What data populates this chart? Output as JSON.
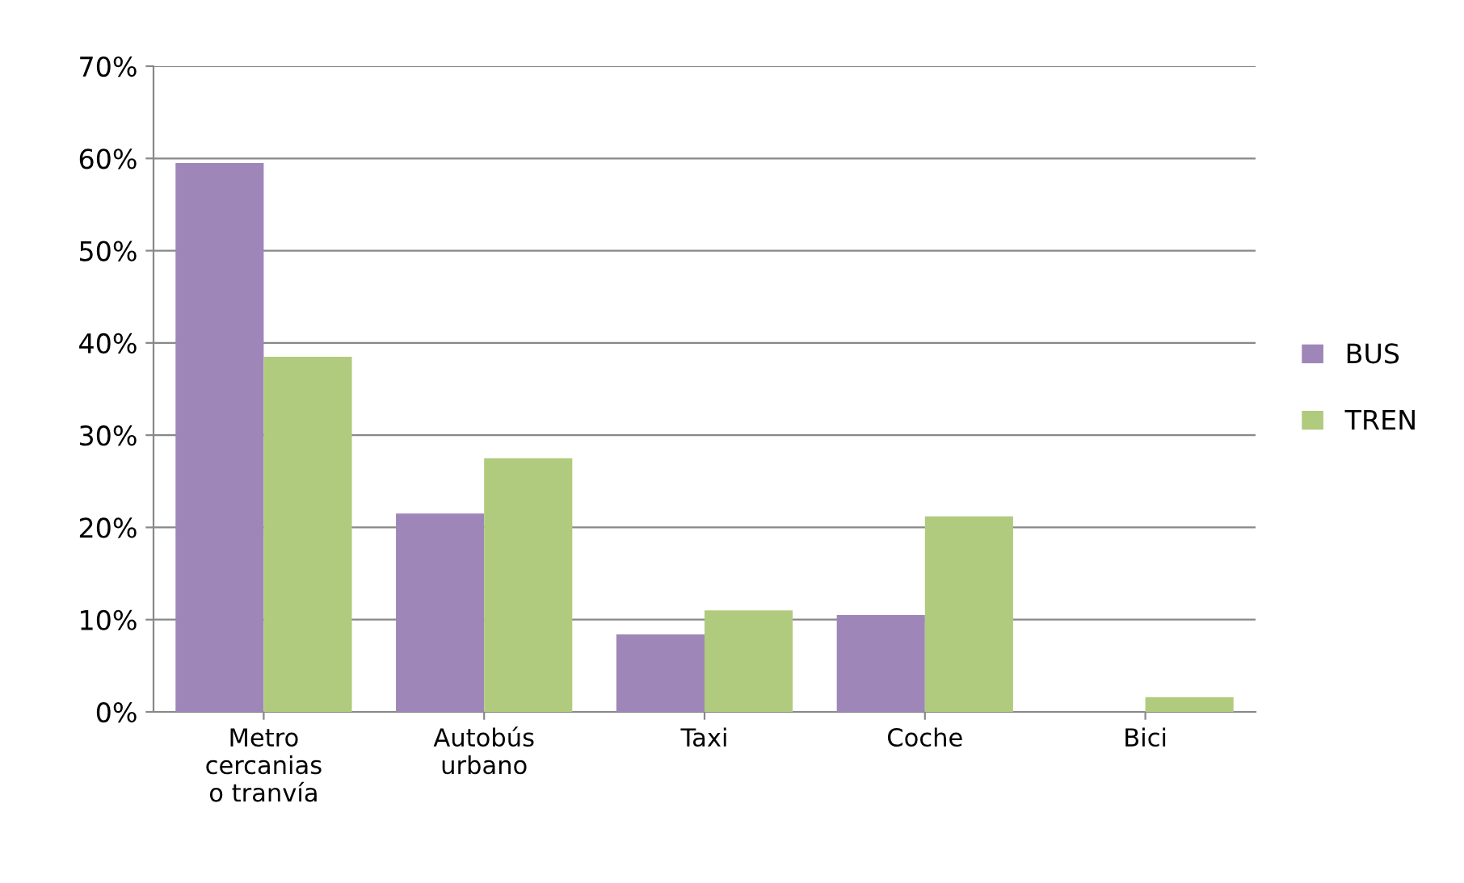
{
  "chart_data": {
    "type": "bar",
    "categories": [
      "Metro cercanias o tranvía",
      "Autobús urbano",
      "Taxi",
      "Coche",
      "Bici"
    ],
    "series": [
      {
        "name": "BUS",
        "color": "#9e86b9",
        "values": [
          59.5,
          21.5,
          8.4,
          10.5,
          0
        ]
      },
      {
        "name": "TREN",
        "color": "#b0cb7d",
        "values": [
          38.5,
          27.5,
          11,
          21.2,
          1.6
        ]
      }
    ],
    "ylim": [
      0,
      70
    ],
    "yticks": [
      {
        "value": 0,
        "label": "0%"
      },
      {
        "value": 10,
        "label": "10%"
      },
      {
        "value": 20,
        "label": "20%"
      },
      {
        "value": 30,
        "label": "30%"
      },
      {
        "value": 40,
        "label": "40%"
      },
      {
        "value": 50,
        "label": "50%"
      },
      {
        "value": 60,
        "label": "60%"
      },
      {
        "value": 70,
        "label": "70%"
      }
    ],
    "grid": "y",
    "legend": "right"
  }
}
